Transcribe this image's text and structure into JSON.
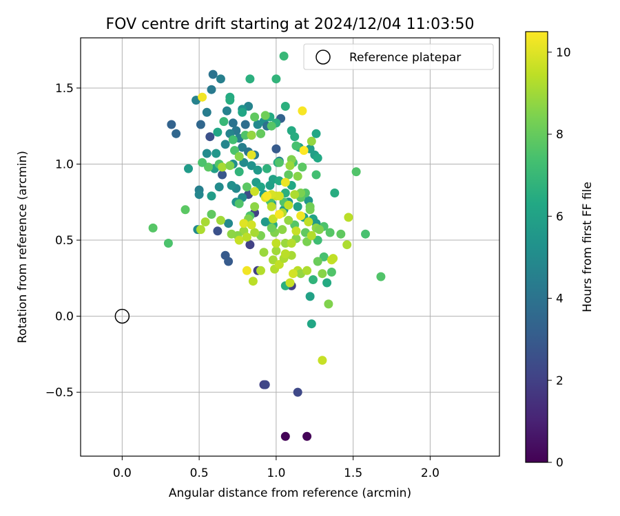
{
  "chart_data": {
    "type": "scatter",
    "title": "FOV centre drift starting at 2024/12/04 11:03:50",
    "xlabel": "Angular distance from reference (arcmin)",
    "ylabel": "Rotation from reference (arcmin)",
    "xlim": [
      -0.27,
      2.45
    ],
    "ylim": [
      -0.92,
      1.83
    ],
    "xticks": [
      0.0,
      0.5,
      1.0,
      1.5,
      2.0
    ],
    "xtick_labels": [
      "0.0",
      "0.5",
      "1.0",
      "1.5",
      "2.0"
    ],
    "yticks": [
      -0.5,
      0.0,
      0.5,
      1.0,
      1.5
    ],
    "ytick_labels": [
      "−0.5",
      "0.0",
      "0.5",
      "1.0",
      "1.5"
    ],
    "grid": true,
    "legend": {
      "placement": "upper right",
      "entries": [
        "Reference platepar"
      ]
    },
    "reference_point": {
      "x": 0.0,
      "y": 0.0,
      "label": "Reference platepar"
    },
    "colorbar": {
      "label": "Hours from first FF file",
      "colormap": "viridis",
      "range": [
        0,
        10.5
      ],
      "ticks": [
        0,
        2,
        4,
        6,
        8,
        10
      ],
      "tick_labels": [
        "0",
        "2",
        "4",
        "6",
        "8",
        "10"
      ]
    },
    "points": [
      [
        1.06,
        -0.79,
        0.1
      ],
      [
        1.2,
        -0.79,
        0.1
      ],
      [
        0.92,
        -0.45,
        2.0
      ],
      [
        0.93,
        -0.45,
        2.2
      ],
      [
        1.14,
        -0.5,
        2.3
      ],
      [
        0.88,
        0.3,
        2.0
      ],
      [
        1.1,
        0.2,
        2.0
      ],
      [
        0.86,
        0.68,
        2.0
      ],
      [
        0.83,
        0.47,
        2.0
      ],
      [
        0.62,
        0.56,
        2.6
      ],
      [
        0.67,
        0.4,
        3.0
      ],
      [
        0.69,
        0.36,
        3.0
      ],
      [
        0.57,
        1.18,
        2.6
      ],
      [
        0.32,
        1.26,
        3.3
      ],
      [
        0.35,
        1.2,
        3.5
      ],
      [
        0.51,
        1.26,
        3.5
      ],
      [
        0.82,
        0.8,
        2.5
      ],
      [
        0.65,
        0.93,
        2.8
      ],
      [
        0.59,
        1.59,
        4.0
      ],
      [
        0.58,
        1.49,
        4.3
      ],
      [
        0.64,
        1.56,
        4.5
      ],
      [
        0.48,
        1.42,
        4.6
      ],
      [
        0.55,
        1.34,
        4.4
      ],
      [
        0.68,
        1.35,
        4.6
      ],
      [
        0.72,
        1.27,
        4.0
      ],
      [
        0.74,
        1.22,
        4.2
      ],
      [
        0.76,
        1.17,
        4.5
      ],
      [
        0.7,
        1.2,
        4.7
      ],
      [
        0.67,
        1.13,
        4.8
      ],
      [
        0.8,
        1.26,
        3.8
      ],
      [
        0.84,
        1.19,
        4.0
      ],
      [
        0.78,
        1.11,
        4.5
      ],
      [
        0.82,
        1.08,
        4.1
      ],
      [
        0.86,
        1.06,
        4.3
      ],
      [
        0.88,
        1.26,
        4.9
      ],
      [
        0.9,
        1.2,
        5.0
      ],
      [
        0.92,
        1.28,
        5.2
      ],
      [
        0.94,
        1.25,
        3.9
      ],
      [
        0.82,
        1.38,
        4.7
      ],
      [
        0.78,
        1.36,
        5.3
      ],
      [
        1.03,
        1.3,
        3.3
      ],
      [
        1.0,
        1.1,
        3.0
      ],
      [
        1.02,
        1.02,
        4.6
      ],
      [
        0.55,
        1.07,
        5.0
      ],
      [
        0.61,
        1.07,
        5.5
      ],
      [
        0.72,
        1.0,
        5.2
      ],
      [
        0.79,
        1.01,
        5.0
      ],
      [
        0.84,
        0.99,
        5.3
      ],
      [
        0.88,
        0.96,
        5.6
      ],
      [
        0.74,
        0.84,
        4.9
      ],
      [
        0.78,
        0.78,
        5.1
      ],
      [
        0.74,
        0.75,
        5.4
      ],
      [
        0.63,
        0.85,
        5.0
      ],
      [
        0.71,
        0.86,
        5.2
      ],
      [
        0.5,
        0.83,
        4.5
      ],
      [
        0.5,
        0.8,
        4.8
      ],
      [
        0.43,
        0.97,
        5.7
      ],
      [
        0.49,
        0.57,
        5.0
      ],
      [
        0.69,
        0.61,
        4.9
      ],
      [
        0.58,
        0.79,
        5.8
      ],
      [
        0.6,
        0.97,
        5.9
      ],
      [
        0.62,
        1.21,
        6.2
      ],
      [
        0.7,
        1.44,
        6.4
      ],
      [
        0.7,
        1.42,
        6.5
      ],
      [
        0.78,
        1.34,
        6.2
      ],
      [
        0.83,
        1.56,
        6.6
      ],
      [
        0.96,
        1.31,
        6.4
      ],
      [
        1.0,
        1.27,
        6.6
      ],
      [
        1.0,
        1.56,
        6.8
      ],
      [
        1.06,
        1.38,
        6.6
      ],
      [
        1.05,
        1.71,
        7.0
      ],
      [
        1.1,
        1.22,
        6.4
      ],
      [
        1.12,
        1.18,
        6.5
      ],
      [
        1.15,
        1.11,
        6.0
      ],
      [
        1.22,
        1.1,
        5.8
      ],
      [
        1.25,
        1.06,
        5.9
      ],
      [
        1.27,
        1.04,
        6.3
      ],
      [
        1.26,
        1.2,
        6.2
      ],
      [
        1.08,
        0.75,
        5.4
      ],
      [
        1.05,
        0.7,
        5.6
      ],
      [
        1.14,
        0.72,
        5.9
      ],
      [
        1.18,
        0.65,
        6.0
      ],
      [
        1.21,
        0.76,
        5.5
      ],
      [
        1.24,
        0.64,
        6.1
      ],
      [
        1.26,
        0.61,
        5.6
      ],
      [
        1.33,
        0.22,
        6.4
      ],
      [
        1.22,
        0.13,
        6.0
      ],
      [
        1.23,
        -0.05,
        6.2
      ],
      [
        1.06,
        0.2,
        6.6
      ],
      [
        1.38,
        0.81,
        6.5
      ],
      [
        1.24,
        0.24,
        6.8
      ],
      [
        0.93,
        0.62,
        5.6
      ],
      [
        0.97,
        0.74,
        5.8
      ],
      [
        0.96,
        0.86,
        5.9
      ],
      [
        0.98,
        0.9,
        6.0
      ],
      [
        1.01,
        1.01,
        6.5
      ],
      [
        1.06,
        0.81,
        6.6
      ],
      [
        1.1,
        0.86,
        6.3
      ],
      [
        1.02,
        0.89,
        6.4
      ],
      [
        0.87,
        0.88,
        5.8
      ],
      [
        0.9,
        0.85,
        6.2
      ],
      [
        0.92,
        0.8,
        5.7
      ],
      [
        0.94,
        0.97,
        6.7
      ],
      [
        0.98,
        0.6,
        6.5
      ],
      [
        0.76,
        0.95,
        6.8
      ],
      [
        0.66,
        1.28,
        7.0
      ],
      [
        0.72,
        1.16,
        7.3
      ],
      [
        0.73,
        1.09,
        7.5
      ],
      [
        0.63,
        1.0,
        7.6
      ],
      [
        0.56,
        0.98,
        7.8
      ],
      [
        0.52,
        1.01,
        7.5
      ],
      [
        0.8,
        1.19,
        7.6
      ],
      [
        0.86,
        1.31,
        7.9
      ],
      [
        0.9,
        1.2,
        8.0
      ],
      [
        0.93,
        1.32,
        8.2
      ],
      [
        0.97,
        1.25,
        7.7
      ],
      [
        1.02,
        1.01,
        7.6
      ],
      [
        1.08,
        0.93,
        7.9
      ],
      [
        1.11,
        1.01,
        7.3
      ],
      [
        1.13,
        1.12,
        7.4
      ],
      [
        1.17,
        0.98,
        7.8
      ],
      [
        1.19,
        0.81,
        7.6
      ],
      [
        1.26,
        0.93,
        7.3
      ],
      [
        1.27,
        0.5,
        7.2
      ],
      [
        1.31,
        0.59,
        7.5
      ],
      [
        1.35,
        0.55,
        7.7
      ],
      [
        1.42,
        0.54,
        7.9
      ],
      [
        1.52,
        0.95,
        7.6
      ],
      [
        1.58,
        0.54,
        7.4
      ],
      [
        1.68,
        0.26,
        7.6
      ],
      [
        0.3,
        0.48,
        7.5
      ],
      [
        0.41,
        0.7,
        7.8
      ],
      [
        0.2,
        0.58,
        7.7
      ],
      [
        0.58,
        0.67,
        7.9
      ],
      [
        0.76,
        0.74,
        7.6
      ],
      [
        0.81,
        0.85,
        7.8
      ],
      [
        0.83,
        0.66,
        7.5
      ],
      [
        0.96,
        0.76,
        7.4
      ],
      [
        1.05,
        0.75,
        7.6
      ],
      [
        1.12,
        0.6,
        7.7
      ],
      [
        1.16,
        0.78,
        7.8
      ],
      [
        1.19,
        0.55,
        7.9
      ],
      [
        1.31,
        0.39,
        7.4
      ],
      [
        1.36,
        0.29,
        7.6
      ],
      [
        1.27,
        0.36,
        8.1
      ],
      [
        1.3,
        0.28,
        8.6
      ],
      [
        1.34,
        0.08,
        8.5
      ],
      [
        1.22,
        0.72,
        8.2
      ],
      [
        1.23,
        1.15,
        8.8
      ],
      [
        1.1,
        1.03,
        8.5
      ],
      [
        1.09,
        0.99,
        8.9
      ],
      [
        1.14,
        0.92,
        8.6
      ],
      [
        1.16,
        0.81,
        8.4
      ],
      [
        1.22,
        0.7,
        8.3
      ],
      [
        1.26,
        0.58,
        8.7
      ],
      [
        1.28,
        0.57,
        8.5
      ],
      [
        1.2,
        0.49,
        8.4
      ],
      [
        1.13,
        0.51,
        8.6
      ],
      [
        1.08,
        0.63,
        8.8
      ],
      [
        1.04,
        0.57,
        8.7
      ],
      [
        0.99,
        0.55,
        8.5
      ],
      [
        0.97,
        0.58,
        8.2
      ],
      [
        0.9,
        0.53,
        8.4
      ],
      [
        0.86,
        0.72,
        8.7
      ],
      [
        0.82,
        0.64,
        8.5
      ],
      [
        0.79,
        0.56,
        8.9
      ],
      [
        0.75,
        0.53,
        8.6
      ],
      [
        0.71,
        0.54,
        8.7
      ],
      [
        0.64,
        0.63,
        9.0
      ],
      [
        0.54,
        0.62,
        9.1
      ],
      [
        0.51,
        0.57,
        9.2
      ],
      [
        0.65,
        0.98,
        9.1
      ],
      [
        0.7,
        0.99,
        8.5
      ],
      [
        0.76,
        1.05,
        8.6
      ],
      [
        0.84,
        1.19,
        8.8
      ],
      [
        0.86,
        0.55,
        9.1
      ],
      [
        0.9,
        0.3,
        9.3
      ],
      [
        0.92,
        0.42,
        8.9
      ],
      [
        0.98,
        0.37,
        9.1
      ],
      [
        0.99,
        0.31,
        9.3
      ],
      [
        1.0,
        0.43,
        9.0
      ],
      [
        1.02,
        0.34,
        9.5
      ],
      [
        1.05,
        0.38,
        9.2
      ],
      [
        1.06,
        0.48,
        8.9
      ],
      [
        1.1,
        0.48,
        9.3
      ],
      [
        1.1,
        0.4,
        9.1
      ],
      [
        1.13,
        0.56,
        9.6
      ],
      [
        1.14,
        0.3,
        9.4
      ],
      [
        1.16,
        0.28,
        8.8
      ],
      [
        1.2,
        0.3,
        9.2
      ],
      [
        1.06,
        0.41,
        9.4
      ],
      [
        1.0,
        0.48,
        9.5
      ],
      [
        0.98,
        0.64,
        9.6
      ],
      [
        0.97,
        0.72,
        9.4
      ],
      [
        1.04,
        0.68,
        9.3
      ],
      [
        1.08,
        0.73,
        9.5
      ],
      [
        1.12,
        0.8,
        9.2
      ],
      [
        1.0,
        0.79,
        9.6
      ],
      [
        1.02,
        0.79,
        9.8
      ],
      [
        0.93,
        0.78,
        10.0
      ],
      [
        0.97,
        0.8,
        9.9
      ],
      [
        0.86,
        0.82,
        9.7
      ],
      [
        1.36,
        0.37,
        9.6
      ],
      [
        1.37,
        0.38,
        9.5
      ],
      [
        1.3,
        -0.29,
        9.6
      ],
      [
        1.46,
        0.47,
        9.2
      ],
      [
        1.47,
        0.65,
        9.4
      ],
      [
        1.23,
        0.53,
        9.3
      ],
      [
        1.21,
        0.62,
        9.5
      ],
      [
        1.11,
        0.28,
        9.8
      ],
      [
        1.09,
        0.22,
        9.6
      ],
      [
        0.85,
        0.23,
        9.4
      ],
      [
        0.81,
        0.3,
        10.3
      ],
      [
        0.79,
        0.61,
        10.0
      ],
      [
        0.84,
        0.6,
        9.8
      ],
      [
        0.76,
        0.5,
        9.6
      ],
      [
        0.81,
        0.52,
        9.4
      ],
      [
        0.52,
        1.44,
        10.3
      ],
      [
        1.17,
        1.35,
        10.4
      ],
      [
        1.06,
        0.88,
        10.2
      ],
      [
        1.02,
        0.67,
        10.4
      ],
      [
        1.16,
        0.66,
        10.3
      ],
      [
        1.18,
        1.09,
        10.5
      ],
      [
        0.84,
        1.06,
        10.1
      ],
      [
        0.94,
        0.79,
        10.4
      ]
    ]
  }
}
